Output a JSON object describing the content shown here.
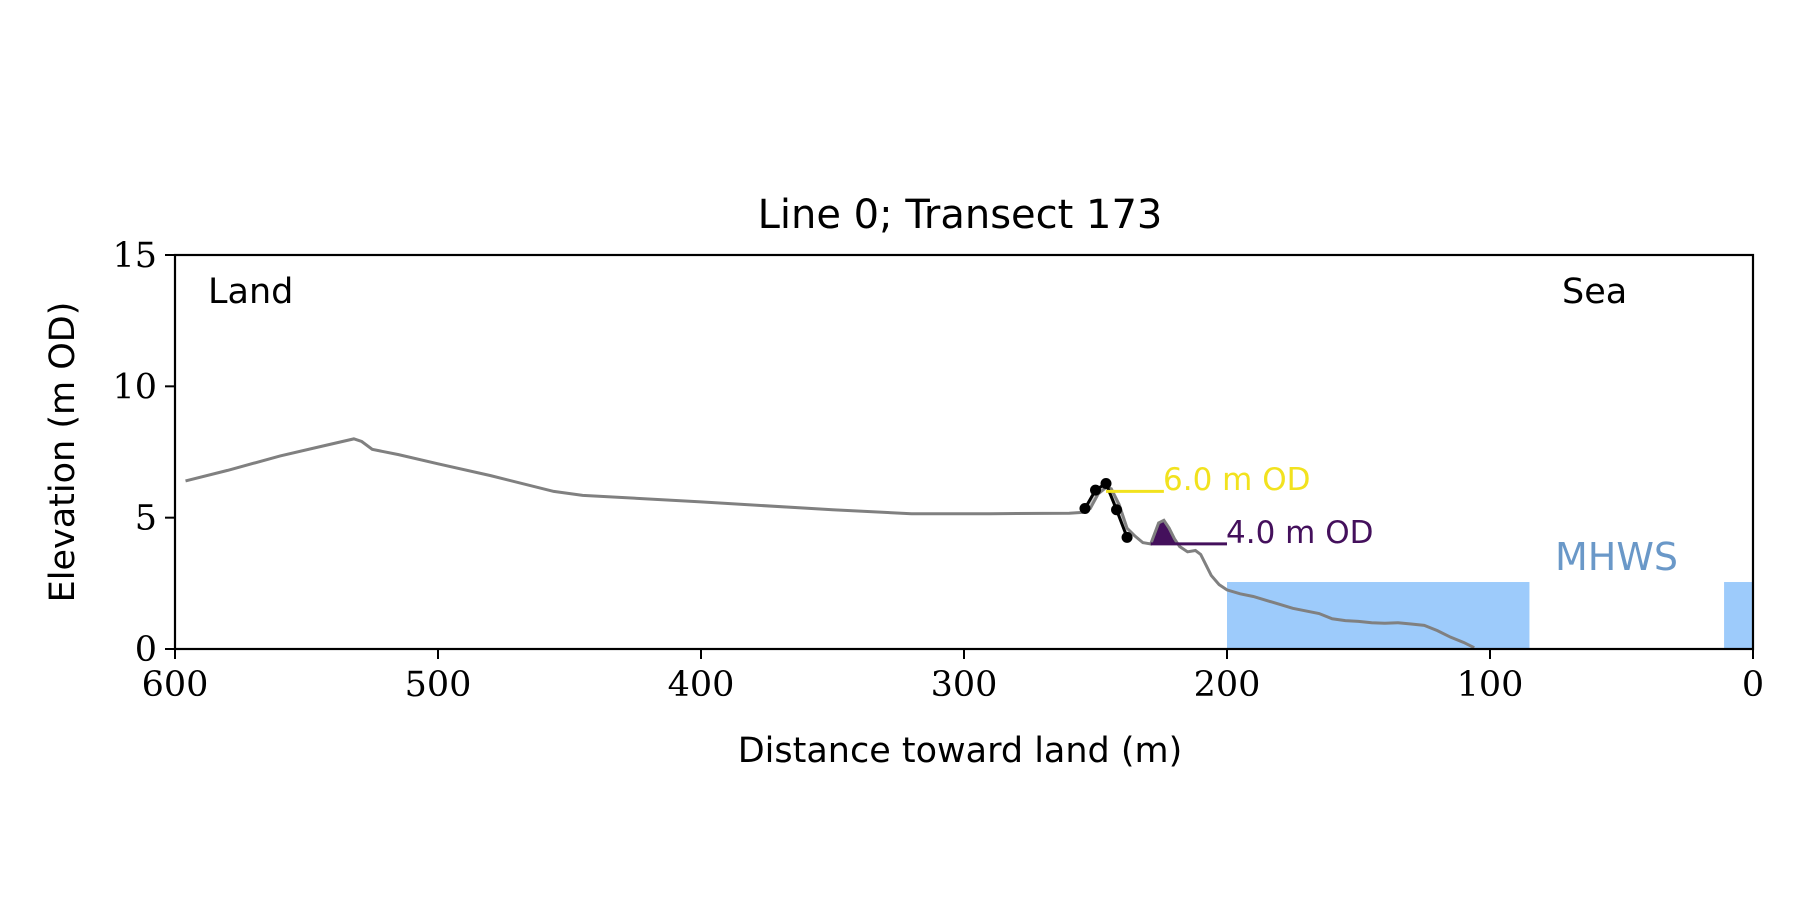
{
  "chart_data": {
    "type": "line",
    "title": "Line 0; Transect 173",
    "xlabel": "Distance toward land (m)",
    "ylabel": "Elevation (m OD)",
    "xlim": [
      600,
      0
    ],
    "ylim": [
      0,
      15
    ],
    "x_ticks": [
      600,
      500,
      400,
      300,
      200,
      100,
      0
    ],
    "y_ticks": [
      0,
      5,
      10,
      15
    ],
    "grid": false,
    "annotations": {
      "land_label": "Land",
      "sea_label": "Sea",
      "mhws_label": "MHWS",
      "level_high_label": "6.0 m OD",
      "level_low_label": "4.0 m OD"
    },
    "colors": {
      "profile": "#808080",
      "cliff": "#000000",
      "high_level": "#f2e21e",
      "low_level": "#44105c",
      "water": "#9dcbfb",
      "mhws_text": "#6a98c8",
      "cliff_fill": "#c8c8c8"
    },
    "mhws_elevation": 2.55,
    "water_extents": [
      [
        200,
        85
      ],
      [
        11,
        0
      ]
    ],
    "series": [
      {
        "values": [
          [
            596,
            6.4
          ],
          [
            580,
            6.8
          ],
          [
            560,
            7.35
          ],
          [
            545,
            7.7
          ],
          [
            532,
            8.0
          ],
          [
            529,
            7.9
          ],
          [
            525,
            7.6
          ],
          [
            515,
            7.4
          ],
          [
            500,
            7.05
          ],
          [
            480,
            6.6
          ],
          [
            456,
            6.0
          ],
          [
            445,
            5.85
          ],
          [
            400,
            5.6
          ],
          [
            350,
            5.3
          ],
          [
            320,
            5.15
          ],
          [
            290,
            5.15
          ],
          [
            260,
            5.17
          ],
          [
            255,
            5.2
          ],
          [
            252,
            5.35
          ],
          [
            249,
            5.9
          ],
          [
            246,
            6.15
          ],
          [
            244,
            6.1
          ],
          [
            241,
            5.5
          ],
          [
            238,
            4.6
          ],
          [
            235,
            4.3
          ],
          [
            232,
            4.05
          ],
          [
            229,
            4.0
          ],
          [
            226,
            4.8
          ],
          [
            224,
            4.9
          ],
          [
            222,
            4.6
          ],
          [
            220,
            4.2
          ],
          [
            218,
            3.9
          ],
          [
            215,
            3.7
          ],
          [
            212,
            3.75
          ],
          [
            210,
            3.6
          ],
          [
            208,
            3.2
          ],
          [
            206,
            2.8
          ],
          [
            203,
            2.45
          ],
          [
            200,
            2.25
          ],
          [
            195,
            2.1
          ],
          [
            190,
            2.0
          ],
          [
            185,
            1.85
          ],
          [
            180,
            1.7
          ],
          [
            175,
            1.55
          ],
          [
            170,
            1.45
          ],
          [
            165,
            1.35
          ],
          [
            160,
            1.15
          ],
          [
            155,
            1.08
          ],
          [
            150,
            1.05
          ],
          [
            145,
            1.0
          ],
          [
            140,
            0.98
          ],
          [
            135,
            1.0
          ],
          [
            130,
            0.95
          ],
          [
            125,
            0.9
          ],
          [
            120,
            0.7
          ],
          [
            115,
            0.45
          ],
          [
            110,
            0.25
          ],
          [
            106,
            0.05
          ]
        ]
      },
      {
        "values": [
          [
            254,
            5.35
          ],
          [
            250,
            6.05
          ],
          [
            246,
            6.3
          ],
          [
            242,
            5.3
          ],
          [
            238,
            4.25
          ]
        ]
      }
    ]
  }
}
